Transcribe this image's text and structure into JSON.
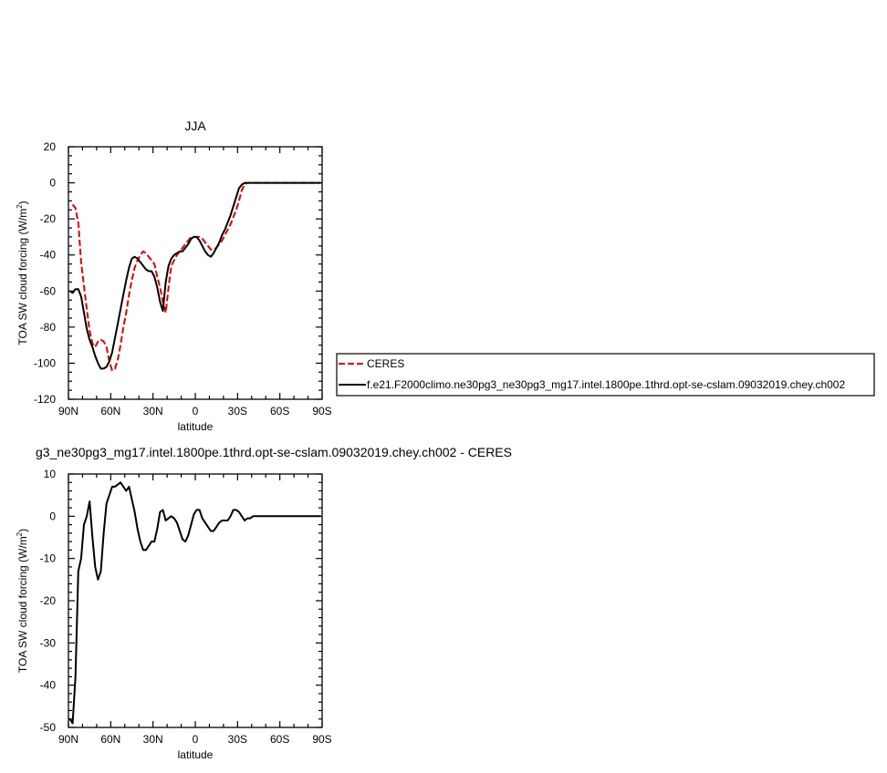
{
  "chart_data": [
    {
      "type": "line",
      "title": "JJA",
      "xlabel": "latitude",
      "ylabel": "TOA SW cloud forcing (W/m",
      "ylabel_sup": "2",
      "ylabel_end": ")",
      "xlim": [
        90,
        -90
      ],
      "ylim": [
        -120,
        20
      ],
      "x_ticks": [
        90,
        60,
        30,
        0,
        -30,
        -60,
        -90
      ],
      "x_tick_labels": [
        "90N",
        "60N",
        "30N",
        "0",
        "30S",
        "60S",
        "90S"
      ],
      "y_ticks": [
        20,
        0,
        -20,
        -40,
        -60,
        -80,
        -100,
        -120
      ],
      "y_tick_labels": [
        "20",
        "0",
        "-20",
        "-40",
        "-60",
        "-80",
        "-100",
        "-120"
      ],
      "legend_position": "right",
      "series": [
        {
          "name": "CERES",
          "color": "#dd0000",
          "dash": "dashed",
          "x": [
            87,
            85,
            83,
            81,
            79,
            77,
            75,
            73,
            71,
            69,
            67,
            65,
            63,
            61,
            59,
            57,
            55,
            53,
            51,
            49,
            47,
            45,
            43,
            41,
            39,
            37,
            35,
            33,
            31,
            29,
            27,
            25,
            23,
            21,
            19,
            17,
            15,
            13,
            11,
            9,
            7,
            5,
            3,
            1,
            -1,
            -3,
            -5,
            -7,
            -9,
            -11,
            -13,
            -15,
            -17,
            -19,
            -21,
            -23,
            -25,
            -27,
            -29,
            -31,
            -33,
            -35,
            -37,
            -39,
            -41,
            -43,
            -45,
            -47,
            -49,
            -51,
            -53,
            -55,
            -57,
            -59,
            -61,
            -63,
            -65,
            -67,
            -69,
            -71,
            -73,
            -75,
            -77,
            -79,
            -81,
            -83,
            -85,
            -87,
            -89
          ],
          "y": [
            -12,
            -14,
            -22,
            -44,
            -57,
            -70,
            -82,
            -89,
            -91,
            -88,
            -87,
            -88,
            -91,
            -99,
            -104,
            -103,
            -98,
            -90,
            -80,
            -72,
            -62,
            -54,
            -47,
            -43,
            -40,
            -38,
            -39,
            -41,
            -43,
            -45,
            -52,
            -58,
            -66,
            -72,
            -58,
            -46,
            -43,
            -40,
            -38,
            -36,
            -34,
            -32,
            -30,
            -30,
            -30,
            -30,
            -31,
            -33,
            -35,
            -37,
            -37,
            -36,
            -34,
            -32,
            -29,
            -26,
            -23,
            -19,
            -15,
            -10,
            -4,
            -1,
            0,
            0,
            0,
            0,
            0,
            0,
            0,
            0,
            0,
            0,
            0,
            0,
            0,
            0,
            0,
            0,
            0,
            0,
            0,
            0,
            0,
            0,
            0,
            0,
            0,
            0,
            0
          ]
        },
        {
          "name": "f.e21.F2000climo.ne30pg3_ne30pg3_mg17.intel.1800pe.1thrd.opt-se-cslam.09032019.chey.ch002",
          "color": "#000000",
          "dash": "solid",
          "x": [
            89,
            87,
            85,
            83,
            81,
            79,
            77,
            75,
            73,
            71,
            69,
            67,
            65,
            63,
            61,
            59,
            57,
            55,
            53,
            51,
            49,
            47,
            45,
            43,
            41,
            39,
            37,
            35,
            33,
            31,
            29,
            27,
            25,
            23,
            21,
            19,
            17,
            15,
            13,
            11,
            9,
            7,
            5,
            3,
            1,
            -1,
            -3,
            -5,
            -7,
            -9,
            -11,
            -13,
            -15,
            -17,
            -19,
            -21,
            -23,
            -25,
            -27,
            -29,
            -31,
            -33,
            -35,
            -37,
            -39,
            -41,
            -43,
            -45,
            -47,
            -49,
            -51,
            -53,
            -55,
            -57,
            -59,
            -61,
            -63,
            -65,
            -67,
            -69,
            -71,
            -73,
            -75,
            -77,
            -79,
            -81,
            -83,
            -85,
            -87,
            -89
          ],
          "y": [
            -60,
            -61,
            -59,
            -59,
            -63,
            -72,
            -81,
            -87,
            -91,
            -96,
            -100,
            -103,
            -103,
            -102,
            -99,
            -94,
            -86,
            -78,
            -70,
            -62,
            -54,
            -47,
            -42,
            -41,
            -42,
            -44,
            -46,
            -48,
            -49,
            -49,
            -52,
            -58,
            -66,
            -71,
            -55,
            -46,
            -42,
            -40,
            -39,
            -38,
            -38,
            -36,
            -34,
            -31,
            -30,
            -30,
            -32,
            -35,
            -38,
            -40,
            -41,
            -39,
            -36,
            -33,
            -29,
            -26,
            -22,
            -18,
            -13,
            -8,
            -3,
            -1,
            0,
            0,
            0,
            0,
            0,
            0,
            0,
            0,
            0,
            0,
            0,
            0,
            0,
            0,
            0,
            0,
            0,
            0,
            0,
            0,
            0,
            0,
            0,
            0,
            0,
            0,
            0,
            0
          ]
        }
      ]
    },
    {
      "type": "line",
      "title": "g3_ne30pg3_mg17.intel.1800pe.1thrd.opt-se-cslam.09032019.chey.ch002 - CERES",
      "xlabel": "latitude",
      "ylabel": "TOA SW cloud forcing (W/m",
      "ylabel_sup": "2",
      "ylabel_end": ")",
      "xlim": [
        90,
        -90
      ],
      "ylim": [
        -50,
        10
      ],
      "x_ticks": [
        90,
        60,
        30,
        0,
        -30,
        -60,
        -90
      ],
      "x_tick_labels": [
        "90N",
        "60N",
        "30N",
        "0",
        "30S",
        "60S",
        "90S"
      ],
      "y_ticks": [
        10,
        0,
        -10,
        -20,
        -30,
        -40,
        -50
      ],
      "y_tick_labels": [
        "10",
        "0",
        "-10",
        "-20",
        "-30",
        "-40",
        "-50"
      ],
      "series": [
        {
          "color": "#000000",
          "dash": "solid",
          "x": [
            89,
            87,
            85,
            83,
            81,
            79,
            77,
            75,
            73,
            71,
            69,
            67,
            65,
            63,
            61,
            59,
            57,
            55,
            53,
            51,
            49,
            47,
            45,
            43,
            41,
            39,
            37,
            35,
            33,
            31,
            29,
            27,
            25,
            23,
            21,
            19,
            17,
            15,
            13,
            11,
            9,
            7,
            5,
            3,
            1,
            -1,
            -3,
            -5,
            -7,
            -9,
            -11,
            -13,
            -15,
            -17,
            -19,
            -21,
            -23,
            -25,
            -27,
            -29,
            -31,
            -33,
            -35,
            -37,
            -39,
            -41,
            -43,
            -45,
            -47,
            -49,
            -51,
            -53,
            -55,
            -57,
            -59,
            -61,
            -63,
            -65,
            -67,
            -69,
            -71,
            -73,
            -75,
            -77,
            -79,
            -81,
            -83,
            -85,
            -87,
            -89
          ],
          "y": [
            -48,
            -49,
            -38,
            -13,
            -10,
            -2,
            0,
            3.5,
            -5,
            -12,
            -15,
            -13,
            -4,
            3,
            5,
            7,
            7,
            7.5,
            8,
            7,
            6,
            7,
            4,
            1,
            -3,
            -6,
            -8,
            -8,
            -7,
            -6,
            -6,
            -3,
            1,
            1.5,
            -1,
            -0.5,
            0,
            -0.5,
            -1.5,
            -3.5,
            -5.5,
            -6,
            -4.5,
            -2,
            0.5,
            1.5,
            1.5,
            -0.5,
            -1.5,
            -2.5,
            -3.5,
            -3.5,
            -2.5,
            -1.5,
            -1,
            -1,
            -1,
            0,
            1.5,
            1.5,
            1,
            0,
            -1,
            -0.5,
            -0.5,
            0,
            0,
            0,
            0,
            0,
            0,
            0,
            0,
            0,
            0,
            0,
            0,
            0,
            0,
            0,
            0,
            0,
            0,
            0,
            0,
            0,
            0,
            0,
            0,
            0
          ]
        }
      ]
    }
  ]
}
